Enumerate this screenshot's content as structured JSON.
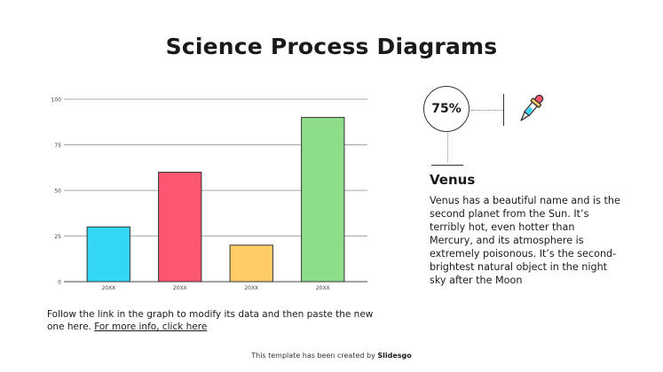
{
  "title": "Science Process Diagrams",
  "chart_data": {
    "type": "bar",
    "categories": [
      "20XX",
      "20XX",
      "20XX",
      "20XX"
    ],
    "values": [
      30,
      60,
      20,
      90
    ],
    "colors": [
      "#33d7f4",
      "#fb5772",
      "#ffcc66",
      "#8ddd8b"
    ],
    "yticks": [
      0,
      25,
      50,
      75,
      100
    ],
    "ylim": [
      0,
      100
    ],
    "grid": true,
    "title": "",
    "xlabel": "",
    "ylabel": ""
  },
  "note": {
    "text": "Follow the link in the graph to modify its data and then paste the new one here. ",
    "link": "For more info, click here"
  },
  "stat": {
    "percent": "75%",
    "icon": "dropper-icon"
  },
  "info": {
    "heading": "Venus",
    "body": "Venus has a beautiful name and is the second planet from the Sun. It’s terribly hot, even hotter than Mercury, and its atmosphere is extremely poisonous. It’s the second-brightest natural object in the night sky after the Moon"
  },
  "footer": {
    "prefix": "This template has been created by ",
    "brand": "Slidesgo"
  }
}
